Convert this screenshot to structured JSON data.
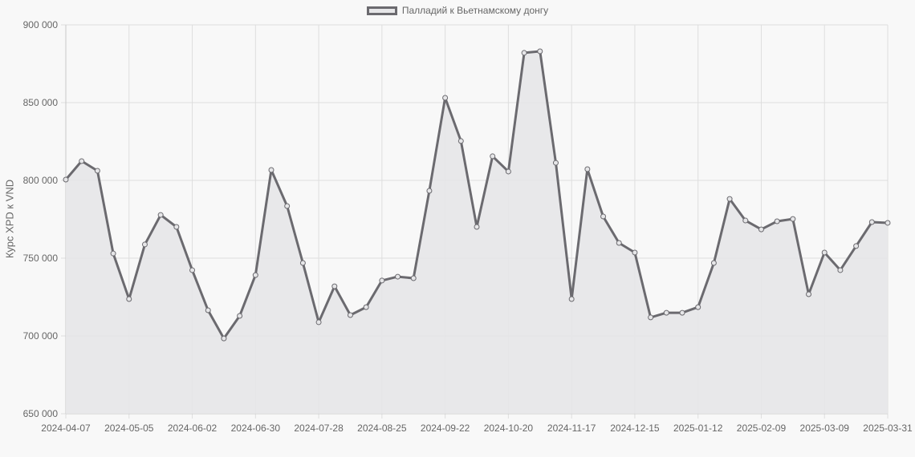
{
  "legend": {
    "label": "Палладий к Вьетнамскому донгу"
  },
  "axes": {
    "ylabel": "Курс XPD к VND"
  },
  "colors": {
    "line": "#6b6a6f",
    "fill": "#e6e6e8",
    "grid": "#dedede",
    "background": "#f8f8f8",
    "text": "#666666"
  },
  "chart_data": {
    "type": "line",
    "title": "",
    "legend": [
      "Палладий к Вьетнамскому донгу"
    ],
    "legend_position": "top",
    "xlabel": "",
    "ylabel": "Курс XPD к VND",
    "ylim": [
      650000,
      900000
    ],
    "yticks": [
      650000,
      700000,
      750000,
      800000,
      850000,
      900000
    ],
    "ytick_labels": [
      "650 000",
      "700 000",
      "750 000",
      "800 000",
      "850 000",
      "900 000"
    ],
    "xtick_labels": [
      "2024-04-07",
      "2024-05-05",
      "2024-06-02",
      "2024-06-30",
      "2024-07-28",
      "2024-08-25",
      "2024-09-22",
      "2024-10-20",
      "2024-11-17",
      "2024-12-15",
      "2025-01-12",
      "2025-02-09",
      "2025-03-09",
      "2025-03-31"
    ],
    "grid": true,
    "fill": true,
    "series": [
      {
        "name": "Палладий к Вьетнамскому донгу",
        "values": [
          800500,
          812400,
          806200,
          753000,
          723700,
          758800,
          777800,
          770100,
          742300,
          716500,
          698400,
          712900,
          739100,
          806700,
          783500,
          746900,
          708800,
          731900,
          713400,
          718500,
          735600,
          738100,
          737100,
          793300,
          853100,
          825300,
          770100,
          815500,
          805700,
          882000,
          883000,
          811300,
          723700,
          807200,
          776800,
          759800,
          753600,
          711900,
          714900,
          714900,
          718500,
          746900,
          788100,
          774200,
          768500,
          773700,
          775200,
          726800,
          753600,
          742300,
          757800,
          773200,
          772700
        ]
      }
    ]
  }
}
